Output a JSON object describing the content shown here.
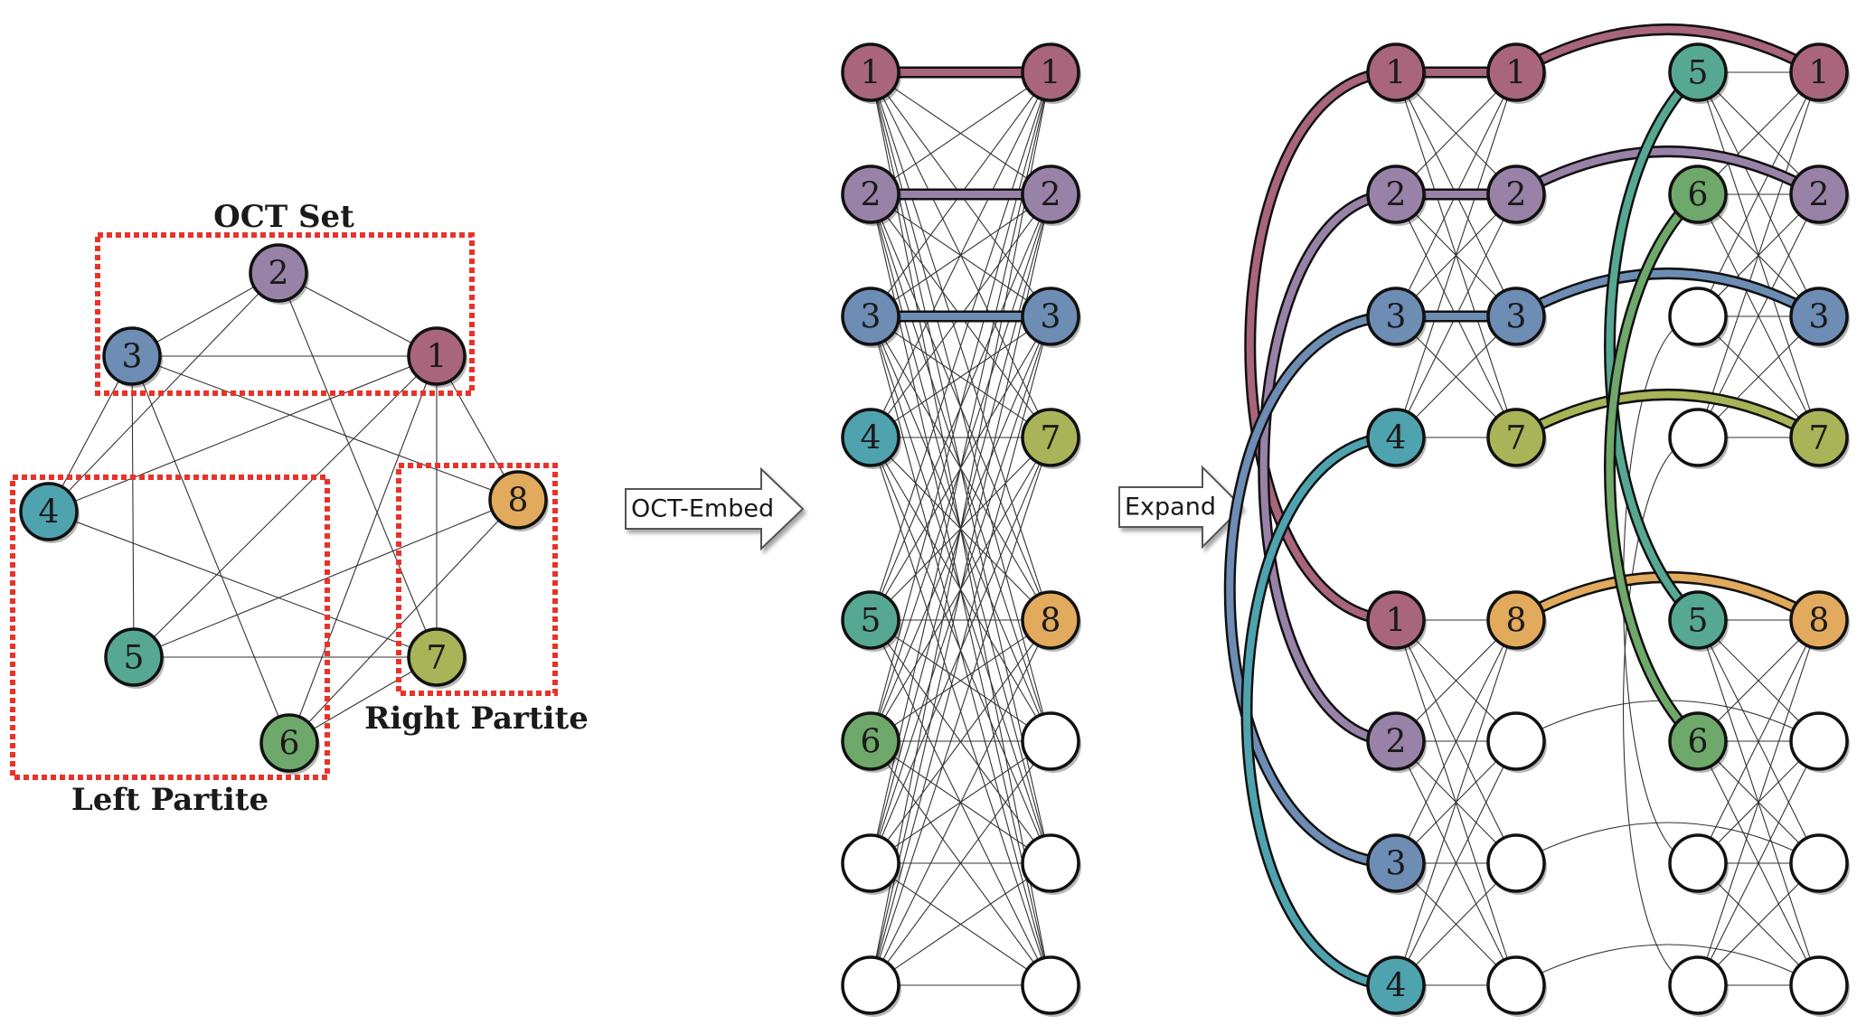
{
  "colors": {
    "1": "#a8657c",
    "2": "#9982a8",
    "3": "#6d8db5",
    "4": "#4ea3ae",
    "5": "#56a893",
    "6": "#6ea86a",
    "7": "#a8b457",
    "8": "#e2aa5c",
    "empty": "#ffffff",
    "partition_box": "#e8322a",
    "edge": "#333333",
    "node_outline": "#111111"
  },
  "panel_original": {
    "labels": {
      "oct_set": "OCT Set",
      "right_partite": "Right Partite",
      "left_partite": "Left Partite"
    },
    "nodes": [
      {
        "id": "2",
        "label": "2"
      },
      {
        "id": "3",
        "label": "3"
      },
      {
        "id": "1",
        "label": "1"
      },
      {
        "id": "4",
        "label": "4"
      },
      {
        "id": "8",
        "label": "8"
      },
      {
        "id": "5",
        "label": "5"
      },
      {
        "id": "7",
        "label": "7"
      },
      {
        "id": "6",
        "label": "6"
      }
    ],
    "edges": [
      [
        "3",
        "2"
      ],
      [
        "2",
        "1"
      ],
      [
        "3",
        "1"
      ],
      [
        "2",
        "4"
      ],
      [
        "2",
        "7"
      ],
      [
        "3",
        "4"
      ],
      [
        "3",
        "5"
      ],
      [
        "3",
        "6"
      ],
      [
        "3",
        "8"
      ],
      [
        "1",
        "4"
      ],
      [
        "1",
        "5"
      ],
      [
        "1",
        "6"
      ],
      [
        "1",
        "7"
      ],
      [
        "1",
        "8"
      ],
      [
        "4",
        "7"
      ],
      [
        "5",
        "7"
      ],
      [
        "5",
        "8"
      ],
      [
        "6",
        "8"
      ],
      [
        "6",
        "7"
      ]
    ]
  },
  "arrow_embed": {
    "label": "OCT-Embed"
  },
  "arrow_expand": {
    "label": "Expand"
  },
  "panel_embed": {
    "left_column": [
      "1",
      "2",
      "3",
      "4",
      "5",
      "6",
      "",
      ""
    ],
    "right_column": [
      "1",
      "2",
      "3",
      "7",
      "8",
      "",
      "",
      ""
    ]
  },
  "panel_expand": {
    "col_a": [
      "1",
      "2",
      "3",
      "4",
      "1",
      "2",
      "3",
      "4"
    ],
    "col_b": [
      "1",
      "2",
      "3",
      "7",
      "8",
      "",
      "",
      ""
    ],
    "col_c": [
      "5",
      "6",
      "",
      "",
      "5",
      "6",
      "",
      ""
    ],
    "col_d": [
      "1",
      "2",
      "3",
      "7",
      "8",
      "",
      "",
      ""
    ]
  }
}
